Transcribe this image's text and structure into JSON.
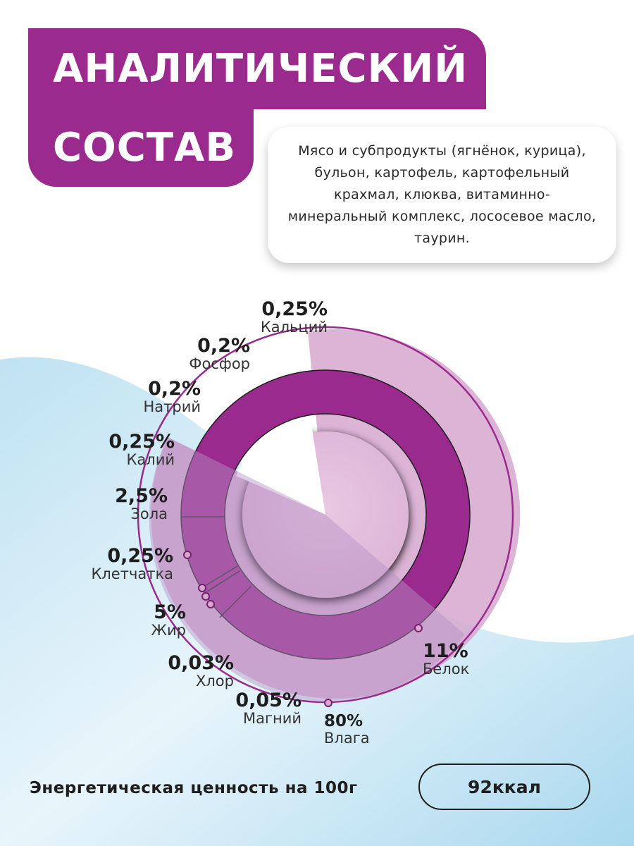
{
  "title": {
    "line1": "АНАЛИТИЧЕСКИЙ",
    "line2": "СОСТАВ"
  },
  "ingredients": "Мясо и субпродукты (ягнёнок, курица), бульон, картофель, картофельный крахмал, клюква, витаминно-минеральный комплекс, лососевое масло, таурин.",
  "colors": {
    "purple_dark": "#9b2a8e",
    "purple_light": "#d6a7cf",
    "purple_soft": "#b98fc6",
    "background_wave": "#cfe8f4"
  },
  "chart_data": {
    "type": "pie",
    "unit": "%",
    "items": [
      {
        "label": "Влага",
        "value": "80%",
        "pct": 80
      },
      {
        "label": "Белок",
        "value": "11%",
        "pct": 11
      },
      {
        "label": "Жир",
        "value": "5%",
        "pct": 5
      },
      {
        "label": "Зола",
        "value": "2,5%",
        "pct": 2.5
      },
      {
        "label": "Кальций",
        "value": "0,25%",
        "pct": 0.25
      },
      {
        "label": "Калий",
        "value": "0,25%",
        "pct": 0.25
      },
      {
        "label": "Клетчатка",
        "value": "0,25%",
        "pct": 0.25
      },
      {
        "label": "Фосфор",
        "value": "0,2%",
        "pct": 0.2
      },
      {
        "label": "Натрий",
        "value": "0,2%",
        "pct": 0.2
      },
      {
        "label": "Магний",
        "value": "0,05%",
        "pct": 0.05
      },
      {
        "label": "Хлор",
        "value": "0,03%",
        "pct": 0.03
      }
    ]
  },
  "energy": {
    "label": "Энергетическая ценность на 100г",
    "value": "92ккал"
  }
}
